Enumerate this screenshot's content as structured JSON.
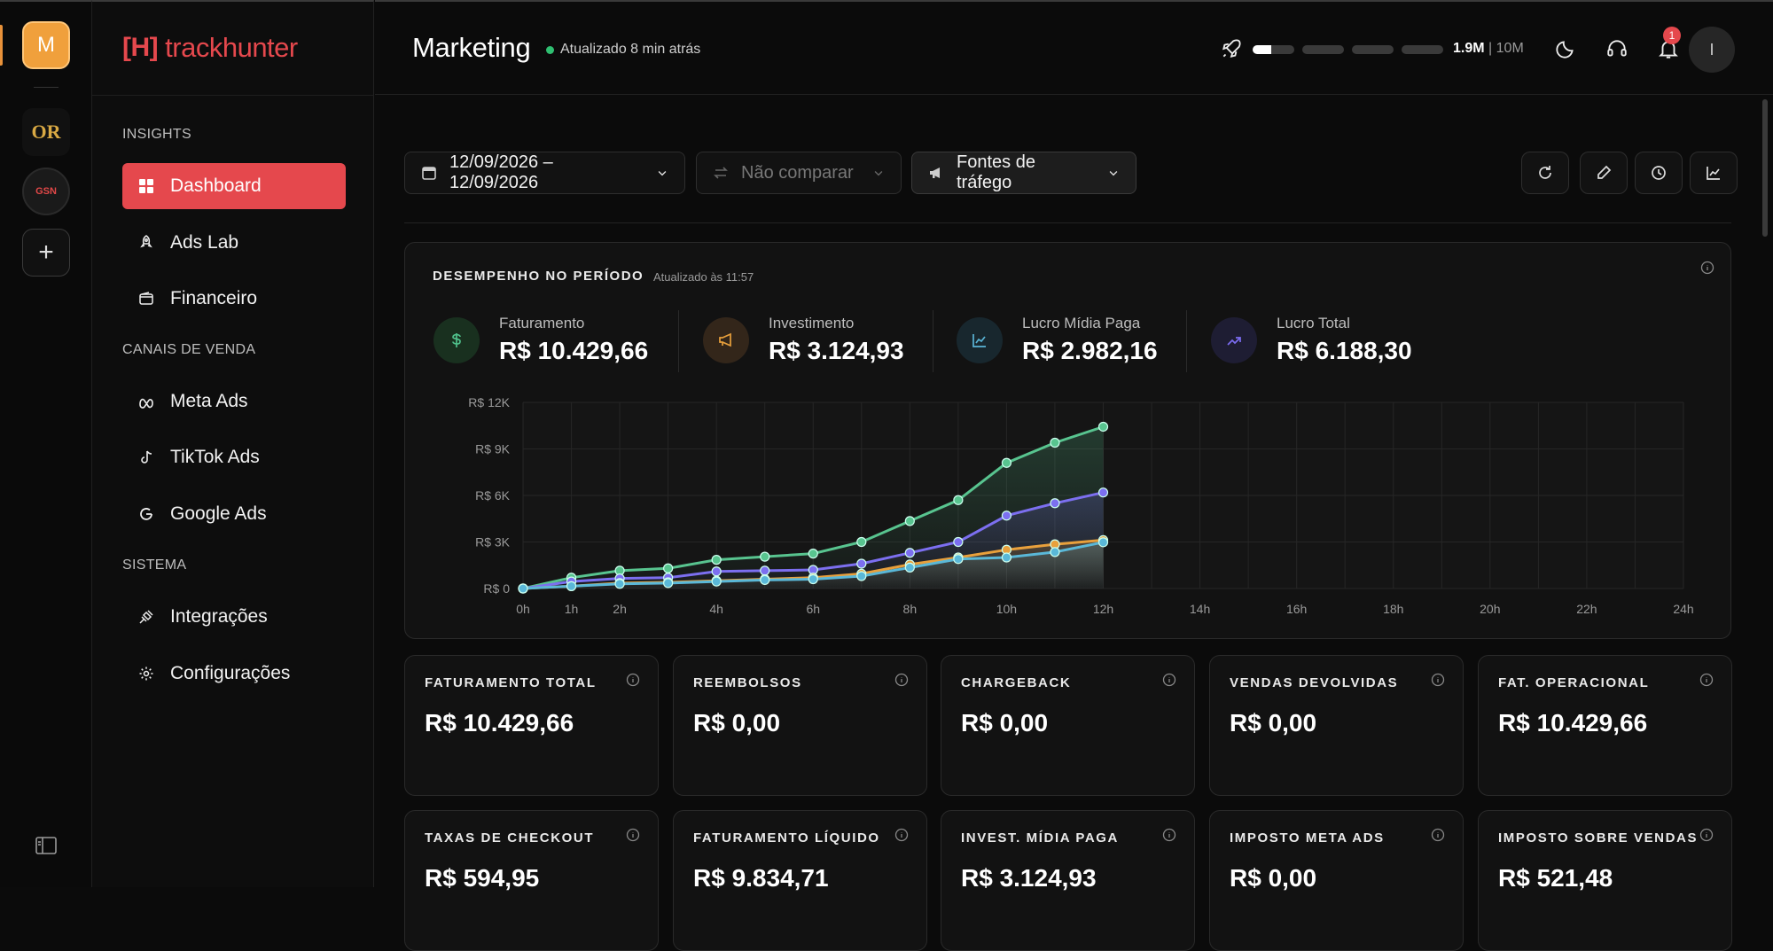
{
  "rail": {
    "workspaces": [
      {
        "label": "M"
      },
      {
        "label": "OR"
      },
      {
        "label": "GSN"
      }
    ],
    "add_icon": "plus-icon",
    "collapse_icon": "sidebar-toggle-icon"
  },
  "sidebar": {
    "logo_mark": "[H]",
    "logo_text": "trackhunter",
    "sections": [
      {
        "title": "INSIGHTS",
        "items": [
          {
            "label": "Dashboard",
            "icon": "grid-icon",
            "active": true
          },
          {
            "label": "Ads Lab",
            "icon": "rocket-icon"
          },
          {
            "label": "Financeiro",
            "icon": "wallet-icon"
          }
        ]
      },
      {
        "title": "CANAIS DE VENDA",
        "items": [
          {
            "label": "Meta Ads",
            "icon": "meta-icon"
          },
          {
            "label": "TikTok Ads",
            "icon": "tiktok-icon"
          },
          {
            "label": "Google Ads",
            "icon": "google-icon"
          }
        ]
      },
      {
        "title": "SISTEMA",
        "items": [
          {
            "label": "Integrações",
            "icon": "plug-icon"
          },
          {
            "label": "Configurações",
            "icon": "gear-icon"
          }
        ]
      }
    ]
  },
  "header": {
    "title": "Marketing",
    "status": "Atualizado 8 min atrás",
    "usage_current": "1.9M",
    "usage_sep": "|",
    "usage_max": "10M",
    "usage_progress": 0.19,
    "notifications": "1",
    "avatar": "I"
  },
  "filters": {
    "date_range": "12/09/2026 – 12/09/2026",
    "compare": "Não comparar",
    "sources": "Fontes de tráfego"
  },
  "performance": {
    "title": "DESEMPENHO NO PERÍODO",
    "updated": "Atualizado às 11:57",
    "kpis": [
      {
        "label": "Faturamento",
        "value": "R$ 10.429,66",
        "icon": "dollar-icon",
        "color": "#4fbf8a"
      },
      {
        "label": "Investimento",
        "value": "R$ 3.124,93",
        "icon": "megaphone-icon",
        "color": "#e8a03c"
      },
      {
        "label": "Lucro Mídia Paga",
        "value": "R$ 2.982,16",
        "icon": "line-chart-icon",
        "color": "#5ab4d6"
      },
      {
        "label": "Lucro Total",
        "value": "R$ 6.188,30",
        "icon": "trending-up-icon",
        "color": "#7b6cf0"
      }
    ]
  },
  "chart_data": {
    "type": "line",
    "x_ticks": [
      "0h",
      "1h",
      "2h",
      "4h",
      "6h",
      "8h",
      "10h",
      "12h",
      "14h",
      "16h",
      "18h",
      "20h",
      "22h",
      "24h"
    ],
    "y_ticks": [
      "R$ 0",
      "R$ 3K",
      "R$ 6K",
      "R$ 9K",
      "R$ 12K"
    ],
    "ylim": [
      0,
      12000
    ],
    "xlim": [
      0,
      24
    ],
    "grid": true,
    "x": [
      0,
      1,
      2,
      3,
      4,
      5,
      6,
      7,
      8,
      9,
      10,
      11,
      12
    ],
    "series": [
      {
        "color": "#58c48f",
        "values": [
          0,
          700,
          1150,
          1300,
          1850,
          2050,
          2250,
          3000,
          4350,
          5700,
          8100,
          9400,
          10430
        ]
      },
      {
        "color": "#7c6ff0",
        "values": [
          0,
          450,
          650,
          700,
          1100,
          1150,
          1200,
          1600,
          2300,
          3000,
          4700,
          5500,
          6190
        ]
      },
      {
        "color": "#e8a03c",
        "values": [
          0,
          150,
          350,
          400,
          500,
          600,
          700,
          950,
          1550,
          2000,
          2500,
          2850,
          3120
        ]
      },
      {
        "color": "#5ab8d8",
        "values": [
          0,
          150,
          300,
          350,
          450,
          550,
          600,
          800,
          1350,
          1900,
          2000,
          2350,
          2980
        ]
      }
    ]
  },
  "cards": [
    {
      "label": "FATURAMENTO TOTAL",
      "value": "R$ 10.429,66"
    },
    {
      "label": "REEMBOLSOS",
      "value": "R$ 0,00"
    },
    {
      "label": "CHARGEBACK",
      "value": "R$ 0,00"
    },
    {
      "label": "VENDAS DEVOLVIDAS",
      "value": "R$ 0,00"
    },
    {
      "label": "FAT. OPERACIONAL",
      "value": "R$ 10.429,66"
    },
    {
      "label": "TAXAS DE CHECKOUT",
      "value": "R$ 594,95"
    },
    {
      "label": "FATURAMENTO LÍQUIDO",
      "value": "R$ 9.834,71"
    },
    {
      "label": "INVEST. MÍDIA PAGA",
      "value": "R$ 3.124,93"
    },
    {
      "label": "IMPOSTO META ADS",
      "value": "R$ 0,00"
    },
    {
      "label": "IMPOSTO SOBRE VENDAS",
      "value": "R$ 521,48"
    }
  ]
}
